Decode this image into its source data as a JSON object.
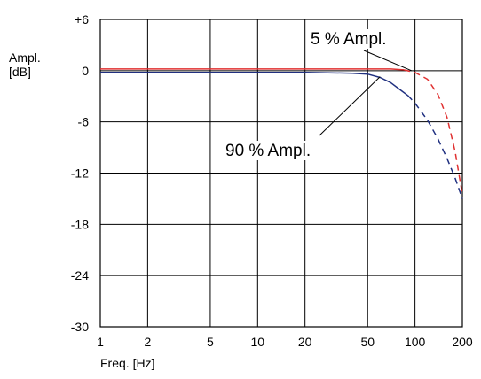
{
  "chart_data": {
    "type": "line",
    "xlabel": "Freq. [Hz]",
    "ylabel_lines": [
      "Ampl.",
      "[dB]"
    ],
    "x_scale": "log",
    "xlim": [
      1,
      200
    ],
    "ylim": [
      -30,
      6
    ],
    "grid": true,
    "x_ticks": [
      1,
      2,
      5,
      10,
      20,
      50,
      100,
      200
    ],
    "x_tick_labels": [
      "1",
      "2",
      "5",
      "10",
      "20",
      "50",
      "100",
      "200"
    ],
    "y_ticks": [
      6,
      0,
      -6,
      -12,
      -18,
      -24,
      -30
    ],
    "y_tick_labels": [
      "+6",
      "0",
      "-6",
      "-12",
      "-18",
      "-24",
      "-30"
    ],
    "annotations": [
      {
        "text": "5 % Ampl.",
        "target": [
          95,
          0
        ]
      },
      {
        "text": "90 % Ampl.",
        "target": [
          60,
          -0.7
        ]
      }
    ],
    "series": [
      {
        "name": "5 % Ampl.",
        "color": "#e03030",
        "segments": [
          {
            "style": "solid",
            "x": [
              1,
              2,
              5,
              10,
              20,
              50,
              70,
              85
            ],
            "y": [
              0.2,
              0.2,
              0.2,
              0.2,
              0.2,
              0.2,
              0.2,
              0.1
            ]
          },
          {
            "style": "dashed",
            "x": [
              85,
              100,
              120,
              140,
              160,
              180,
              200
            ],
            "y": [
              0.1,
              -0.2,
              -1.0,
              -2.8,
              -5.5,
              -9.5,
              -14.5
            ]
          }
        ]
      },
      {
        "name": "90 % Ampl.",
        "color": "#203080",
        "segments": [
          {
            "style": "solid",
            "x": [
              1,
              2,
              5,
              10,
              20,
              40,
              50,
              60,
              70,
              80,
              90
            ],
            "y": [
              -0.2,
              -0.2,
              -0.2,
              -0.2,
              -0.2,
              -0.3,
              -0.4,
              -0.8,
              -1.4,
              -2.2,
              -2.9
            ]
          },
          {
            "style": "dashed",
            "x": [
              90,
              100,
              120,
              140,
              160,
              180,
              200
            ],
            "y": [
              -2.9,
              -3.8,
              -5.8,
              -8.0,
              -10.3,
              -12.6,
              -15.0
            ]
          }
        ]
      }
    ]
  }
}
